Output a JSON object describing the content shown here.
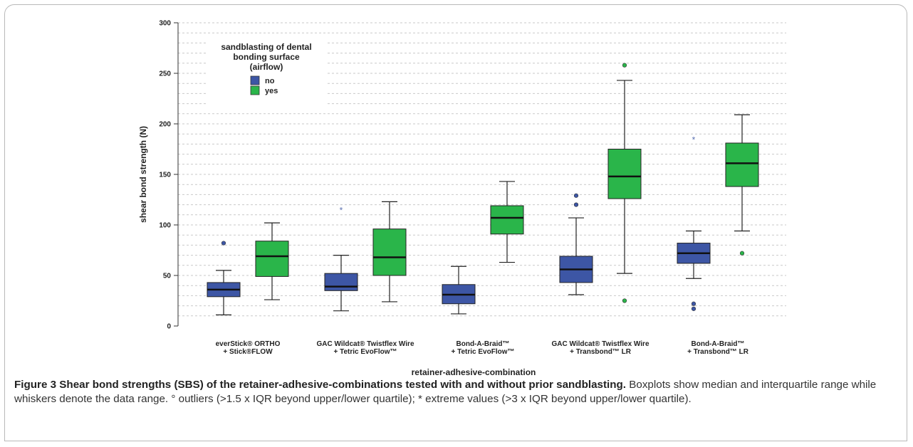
{
  "chart_data": {
    "type": "boxplot",
    "ylabel": "shear bond strength (N)",
    "xlabel": "retainer-adhesive-combination",
    "ylim": [
      0,
      300
    ],
    "yticks": [
      0,
      50,
      100,
      150,
      200,
      250,
      300
    ],
    "grid": "horizontal dashed",
    "legend": {
      "title_lines": [
        "sandblasting of dental",
        "bonding surface",
        "(airflow)"
      ],
      "placement": "top-left",
      "entries": [
        {
          "label": "no",
          "color": "#3d56a5"
        },
        {
          "label": "yes",
          "color": "#2ab54a"
        }
      ]
    },
    "categories": [
      [
        "everStick® ORTHO",
        "+ Stick®FLOW"
      ],
      [
        "GAC Wildcat® Twistflex Wire",
        "+ Tetric EvoFlow™"
      ],
      [
        "Bond-A-Braid™",
        "+ Tetric EvoFlow™"
      ],
      [
        "GAC Wildcat® Twistflex Wire",
        "+ Transbond™ LR"
      ],
      [
        "Bond-A-Braid™",
        "+ Transbond™ LR"
      ]
    ],
    "series": [
      {
        "name": "no",
        "color": "#3d56a5",
        "boxes": [
          {
            "min": 11,
            "q1": 29,
            "median": 36,
            "q3": 43,
            "max": 55,
            "outliers": [
              82
            ],
            "extremes": []
          },
          {
            "min": 15,
            "q1": 35,
            "median": 39,
            "q3": 52,
            "max": 70,
            "outliers": [],
            "extremes": [
              115
            ]
          },
          {
            "min": 12,
            "q1": 22,
            "median": 31,
            "q3": 41,
            "max": 59,
            "outliers": [],
            "extremes": []
          },
          {
            "min": 31,
            "q1": 43,
            "median": 56,
            "q3": 69,
            "max": 107,
            "outliers": [
              129,
              120
            ],
            "extremes": []
          },
          {
            "min": 47,
            "q1": 62,
            "median": 72,
            "q3": 82,
            "max": 94,
            "outliers": [
              22,
              17
            ],
            "extremes": [
              185
            ]
          }
        ]
      },
      {
        "name": "yes",
        "color": "#2ab54a",
        "boxes": [
          {
            "min": 26,
            "q1": 49,
            "median": 69,
            "q3": 84,
            "max": 102,
            "outliers": [],
            "extremes": []
          },
          {
            "min": 24,
            "q1": 50,
            "median": 68,
            "q3": 96,
            "max": 123,
            "outliers": [],
            "extremes": []
          },
          {
            "min": 63,
            "q1": 91,
            "median": 107,
            "q3": 119,
            "max": 143,
            "outliers": [],
            "extremes": []
          },
          {
            "min": 52,
            "q1": 126,
            "median": 148,
            "q3": 175,
            "max": 243,
            "outliers": [
              258,
              25
            ],
            "extremes": []
          },
          {
            "min": 94,
            "q1": 138,
            "median": 161,
            "q3": 181,
            "max": 209,
            "outliers": [
              72
            ],
            "extremes": []
          }
        ]
      }
    ]
  },
  "caption": {
    "lead": "Figure 3 Shear bond strengths (SBS) of the retainer-adhesive-combinations tested with and without prior sandblasting.",
    "body": "Boxplots show median and interquartile range while whiskers denote the data range. ° outliers (>1.5 x IQR beyond upper/lower quartile); * extreme values (>3 x IQR beyond upper/lower quartile)."
  }
}
